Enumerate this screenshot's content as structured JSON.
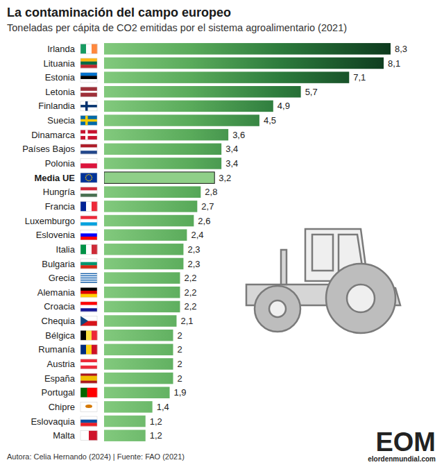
{
  "chart_data": {
    "type": "bar",
    "orientation": "horizontal",
    "title": "La contaminación del campo europeo",
    "subtitle": "Toneladas per cápita de CO2 emitidas por el sistema agroalimentario (2021)",
    "categories": [
      "Irlanda",
      "Lituania",
      "Estonia",
      "Letonia",
      "Finlandia",
      "Suecia",
      "Dinamarca",
      "Países Bajos",
      "Polonia",
      "Media UE",
      "Hungría",
      "Francia",
      "Luxemburgo",
      "Eslovenia",
      "Italia",
      "Bulgaria",
      "Grecia",
      "Alemania",
      "Croacia",
      "Chequia",
      "Bélgica",
      "Rumanía",
      "Austria",
      "España",
      "Portugal",
      "Chipre",
      "Eslovaquia",
      "Malta"
    ],
    "values": [
      8.3,
      8.1,
      7.1,
      5.7,
      4.9,
      4.5,
      3.6,
      3.4,
      3.4,
      3.2,
      2.8,
      2.7,
      2.6,
      2.4,
      2.3,
      2.3,
      2.2,
      2.2,
      2.2,
      2.1,
      2,
      2,
      2,
      2,
      1.9,
      1.4,
      1.2,
      1.2
    ],
    "value_labels": [
      "8,3",
      "8,1",
      "7,1",
      "5,7",
      "4,9",
      "4,5",
      "3,6",
      "3,4",
      "3,4",
      "3,2",
      "2,8",
      "2,7",
      "2,6",
      "2,4",
      "2,3",
      "2,3",
      "2,2",
      "2,2",
      "2,2",
      "2,1",
      "2",
      "2",
      "2",
      "2",
      "1,9",
      "1,4",
      "1,2",
      "1,2"
    ],
    "color": "#0d3a1e",
    "xlim": [
      0,
      8.3
    ],
    "data_labels": true,
    "tick_labels": "y",
    "grid": false,
    "annotations": [
      "Autora: Celia Hernando (2024) | Fuente: FAO (2021)",
      "EOM",
      "elordenmundial.com"
    ]
  }
}
